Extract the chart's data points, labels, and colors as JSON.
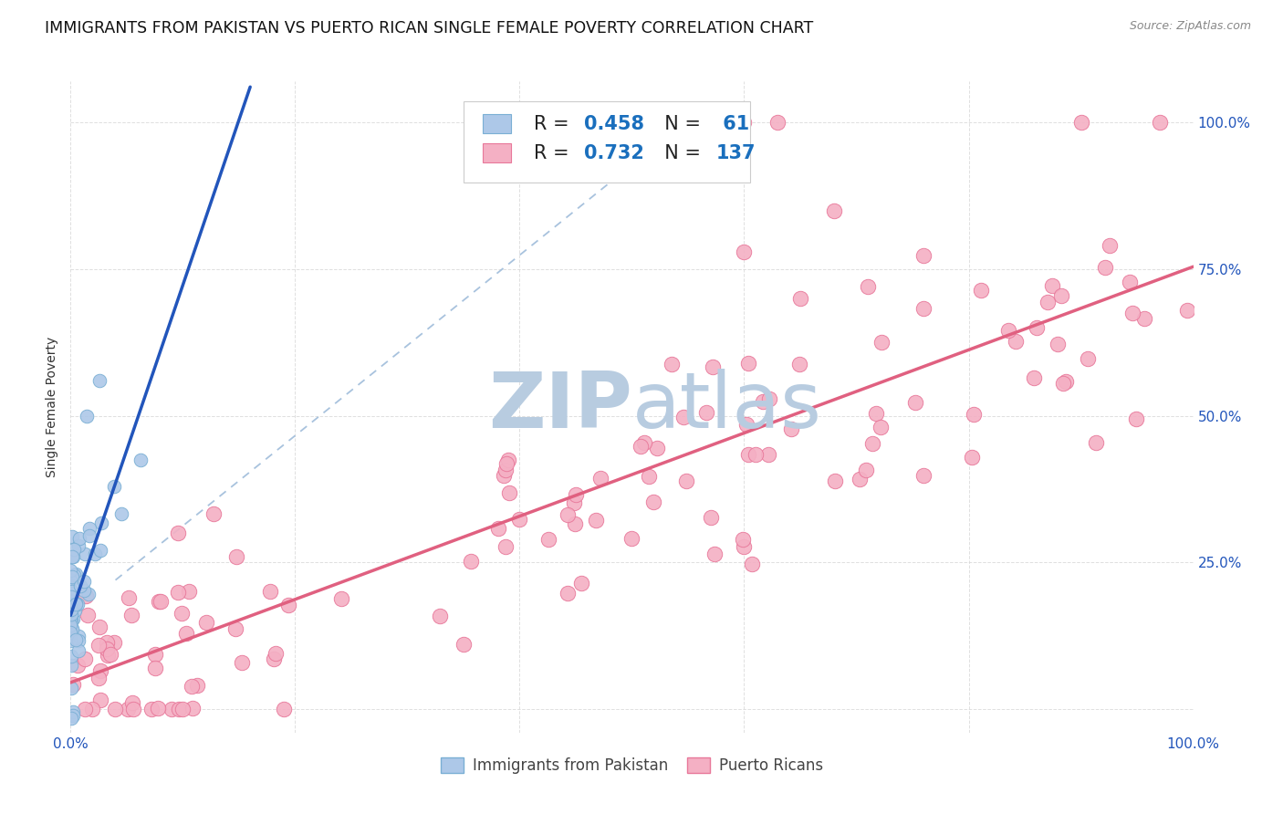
{
  "title": "IMMIGRANTS FROM PAKISTAN VS PUERTO RICAN SINGLE FEMALE POVERTY CORRELATION CHART",
  "source": "Source: ZipAtlas.com",
  "ylabel": "Single Female Poverty",
  "pakistan_color": "#adc8e8",
  "pakistan_edge": "#7aafd4",
  "pr_color": "#f4b0c4",
  "pr_edge": "#e8789a",
  "pakistan_trend_color": "#2255bb",
  "pr_trend_color": "#e06080",
  "diagonal_color": "#99b8d8",
  "pakistan_R": 0.458,
  "pakistan_N": 61,
  "pr_R": 0.732,
  "pr_N": 137,
  "legend_value_color": "#1a6fbd",
  "watermark_zip": "ZIP",
  "watermark_atlas": "atlas",
  "watermark_color": "#c8d8ea",
  "background_color": "#ffffff",
  "grid_color": "#d8d8d8",
  "title_fontsize": 12.5,
  "axis_label_fontsize": 10,
  "tick_fontsize": 11,
  "tick_color": "#2255bb",
  "source_fontsize": 9,
  "legend_fontsize": 15
}
